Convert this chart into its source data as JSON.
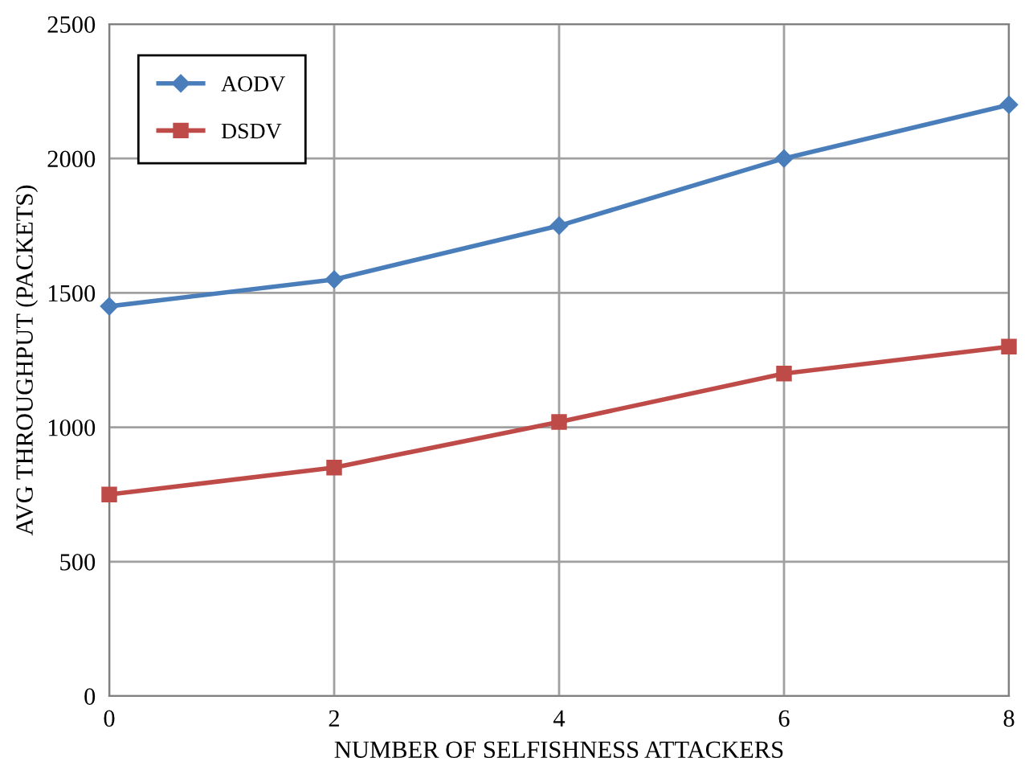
{
  "chart_data": {
    "type": "line",
    "xlabel": "NUMBER OF SELFISHNESS ATTACKERS",
    "ylabel": "AVG THROUGHPUT (PACKETS)",
    "x": [
      0,
      2,
      4,
      6,
      8
    ],
    "series": [
      {
        "name": "AODV",
        "color": "#4a7ebb",
        "marker": "diamond",
        "values": [
          1450,
          1550,
          1750,
          2000,
          2200
        ]
      },
      {
        "name": "DSDV",
        "color": "#be4b48",
        "marker": "square",
        "values": [
          750,
          850,
          1020,
          1200,
          1300
        ]
      }
    ],
    "xlim": [
      0,
      8
    ],
    "xticks": [
      0,
      2,
      4,
      6,
      8
    ],
    "ylim": [
      0,
      2500
    ],
    "yticks": [
      0,
      500,
      1000,
      1500,
      2000,
      2500
    ],
    "grid": true,
    "legend": "top left",
    "line_style": "solid"
  }
}
